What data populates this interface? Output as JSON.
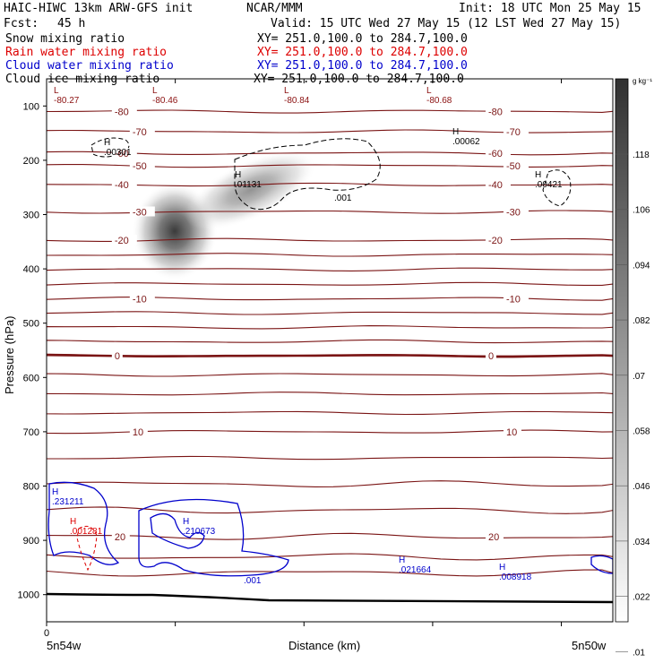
{
  "header": {
    "model": "HAIC-HIWC 13km ARW-GFS init",
    "center": "NCAR/MMM",
    "init": "Init: 18 UTC Mon 25 May 15",
    "fcst_label": "Fcst:",
    "fcst_value": "45 h",
    "valid": "Valid: 15 UTC Wed 27 May 15 (12 LST Wed 27 May 15)"
  },
  "fields": [
    {
      "name": "Snow mixing ratio",
      "xy": "XY= 251.0,100.0 to 284.7,100.0",
      "color": "#000000"
    },
    {
      "name": "Rain water mixing ratio",
      "xy": "XY= 251.0,100.0 to 284.7,100.0",
      "color": "#dd0000"
    },
    {
      "name": "Cloud water mixing ratio",
      "xy": "XY= 251.0,100.0 to 284.7,100.0",
      "color": "#0000cc"
    },
    {
      "name": "Cloud ice mixing ratio",
      "xy": "XY= 251.0,100.0 to 284.7,100.0",
      "color": "#000000"
    }
  ],
  "chart_data": {
    "type": "heatmap",
    "xlabel": "Distance (km)",
    "ylabel": "Pressure (hPa)",
    "x_tick_labels": [
      "0"
    ],
    "x_endpoint_labels": [
      "5n54w",
      "5n50w"
    ],
    "ylim": [
      1050,
      50
    ],
    "y_ticks": [
      100,
      200,
      300,
      400,
      500,
      600,
      700,
      800,
      900,
      1000
    ],
    "colorbar": {
      "unit": "g kg⁻¹",
      "labels": [
        ".118",
        ".106",
        ".094",
        ".082",
        ".07",
        ".058",
        ".046",
        ".034",
        ".022",
        ".01"
      ]
    },
    "temperature_contours": [
      {
        "label": "-80",
        "p": 110
      },
      {
        "label": "-70",
        "p": 147
      },
      {
        "label": "-60",
        "p": 187
      },
      {
        "label": "-50",
        "p": 210
      },
      {
        "label": "-40",
        "p": 245
      },
      {
        "label": "-30",
        "p": 295
      },
      {
        "label": "-20",
        "p": 347
      },
      {
        "label": "-10",
        "p": 455
      },
      {
        "label": "0",
        "p": 560
      },
      {
        "label": "10",
        "p": 700
      },
      {
        "label": "20",
        "p": 893
      }
    ],
    "contour_labels": [
      {
        "text": "L",
        "sub": "-80.27",
        "color": "#8b1010"
      },
      {
        "text": "L",
        "sub": "-80.46",
        "color": "#8b1010"
      },
      {
        "text": "L",
        "sub": "-80.84",
        "color": "#8b1010"
      },
      {
        "text": "L",
        "sub": "-80.68",
        "color": "#8b1010"
      },
      {
        "text": "H",
        "sub": ".00301",
        "color": "#000000"
      },
      {
        "text": "H",
        "sub": ".00062",
        "color": "#000000"
      },
      {
        "text": "H",
        "sub": ".01131",
        "color": "#000000"
      },
      {
        "text": "",
        "sub": ".001",
        "color": "#000000"
      },
      {
        "text": "H",
        "sub": ".00421",
        "color": "#000000"
      },
      {
        "text": "H",
        "sub": ".231211",
        "color": "#0000cc"
      },
      {
        "text": "H",
        "sub": ".001281",
        "color": "#dd0000"
      },
      {
        "text": "H",
        "sub": ".210673",
        "color": "#0000cc"
      },
      {
        "text": "",
        "sub": ".001",
        "color": "#0000cc"
      },
      {
        "text": "H",
        "sub": ".021664",
        "color": "#0000cc"
      },
      {
        "text": "H",
        "sub": ".008918",
        "color": "#0000cc"
      }
    ],
    "snow_max": {
      "value": 0.118,
      "p": 320
    }
  }
}
